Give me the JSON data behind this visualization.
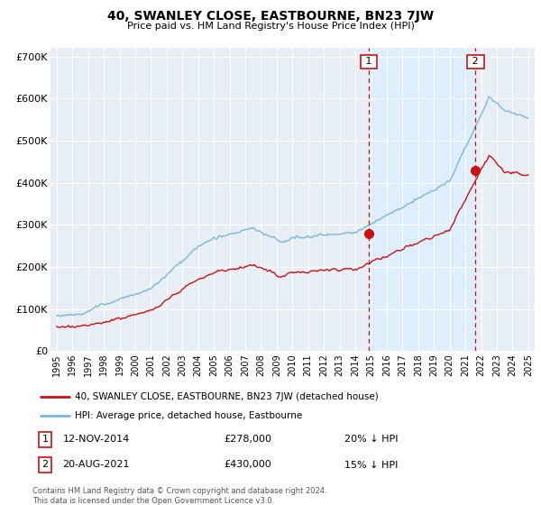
{
  "title": "40, SWANLEY CLOSE, EASTBOURNE, BN23 7JW",
  "subtitle": "Price paid vs. HM Land Registry's House Price Index (HPI)",
  "ylim": [
    0,
    720000
  ],
  "yticks": [
    0,
    100000,
    200000,
    300000,
    400000,
    500000,
    600000,
    700000
  ],
  "ytick_labels": [
    "£0",
    "£100K",
    "£200K",
    "£300K",
    "£400K",
    "£500K",
    "£600K",
    "£700K"
  ],
  "hpi_color": "#7ab8d9",
  "price_color": "#cc1111",
  "marker1_x": 2014.87,
  "marker1_y": 278000,
  "marker2_x": 2021.64,
  "marker2_y": 430000,
  "vline1_x": 2014.87,
  "vline2_x": 2021.64,
  "shade_color": "#ddeeff",
  "legend_line1": "40, SWANLEY CLOSE, EASTBOURNE, BN23 7JW (detached house)",
  "legend_line2": "HPI: Average price, detached house, Eastbourne",
  "annotation1_date": "12-NOV-2014",
  "annotation1_price": "£278,000",
  "annotation1_hpi": "20% ↓ HPI",
  "annotation2_date": "20-AUG-2021",
  "annotation2_price": "£430,000",
  "annotation2_hpi": "15% ↓ HPI",
  "footnote": "Contains HM Land Registry data © Crown copyright and database right 2024.\nThis data is licensed under the Open Government Licence v3.0.",
  "bg_color": "#ffffff",
  "plot_bg_color": "#e8eef5",
  "grid_color": "#ffffff",
  "xlim_left": 1994.6,
  "xlim_right": 2025.4
}
